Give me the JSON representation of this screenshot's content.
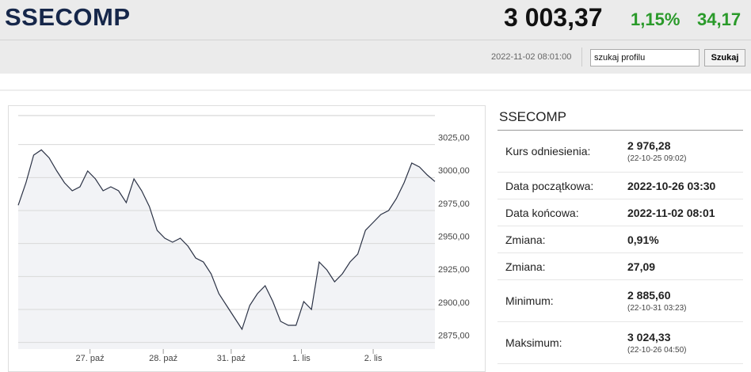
{
  "header": {
    "title": "SSECOMP",
    "price": "3 003,37",
    "change_pct": "1,15%",
    "change": "34,17",
    "timestamp": "2022-11-02 08:01:00",
    "search_placeholder": "szukaj profilu",
    "search_button": "Szukaj"
  },
  "chart_data": {
    "type": "line",
    "color": "#2b3245",
    "fill": "#f2f3f6",
    "x": [
      0,
      1,
      2,
      3,
      4,
      5,
      6,
      7,
      8,
      9,
      10,
      11,
      12,
      13,
      14,
      15,
      16,
      17,
      18,
      19,
      20,
      21,
      22,
      23,
      24,
      25,
      26,
      27,
      28,
      29,
      30,
      31,
      32,
      33,
      34,
      35,
      36,
      37,
      38,
      39,
      40,
      41,
      42,
      43,
      44,
      45,
      46,
      47,
      48,
      49,
      50,
      51,
      52,
      53,
      54
    ],
    "values": [
      2979,
      2996,
      3017,
      3021,
      3015,
      3005,
      2996,
      2990,
      2993,
      3005,
      2999,
      2990,
      2993,
      2990,
      2981,
      2999,
      2990,
      2978,
      2960,
      2954,
      2951,
      2954,
      2948,
      2939,
      2936,
      2927,
      2912,
      2903,
      2894,
      2885,
      2903,
      2912,
      2918,
      2906,
      2891,
      2888,
      2888,
      2906,
      2900,
      2936,
      2930,
      2921,
      2927,
      2936,
      2942,
      2960,
      2966,
      2972,
      2975,
      2984,
      2996,
      3011,
      3008,
      3002,
      2997
    ],
    "xlim": [
      0,
      54
    ],
    "xticks": [
      {
        "value": 9.3,
        "label": "27. paź"
      },
      {
        "value": 18.8,
        "label": "28. paź"
      },
      {
        "value": 27.6,
        "label": "31. paź"
      },
      {
        "value": 36.7,
        "label": "1. lis"
      },
      {
        "value": 46,
        "label": "2. lis"
      }
    ],
    "ylim": [
      2870,
      3047
    ],
    "yticks": [
      {
        "value": 2875,
        "label": "2875,00"
      },
      {
        "value": 2900,
        "label": "2900,00"
      },
      {
        "value": 2925,
        "label": "2925,00"
      },
      {
        "value": 2950,
        "label": "2950,00"
      },
      {
        "value": 2975,
        "label": "2975,00"
      },
      {
        "value": 3000,
        "label": "3000,00"
      },
      {
        "value": 3025,
        "label": "3025,00"
      }
    ],
    "grid": true
  },
  "panel": {
    "title": "SSECOMP",
    "rows": [
      {
        "label": "Kurs odniesienia:",
        "value": "2 976,28",
        "sub": "(22-10-25 09:02)"
      },
      {
        "label": "Data początkowa:",
        "value": "2022-10-26 03:30"
      },
      {
        "label": "Data końcowa:",
        "value": "2022-11-02 08:01"
      },
      {
        "label": "Zmiana:",
        "value": "0,91%"
      },
      {
        "label": "Zmiana:",
        "value": "27,09"
      },
      {
        "label": "Minimum:",
        "value": "2 885,60",
        "sub": "(22-10-31 03:23)"
      },
      {
        "label": "Maksimum:",
        "value": "3 024,33",
        "sub": "(22-10-26 04:50)"
      }
    ]
  }
}
